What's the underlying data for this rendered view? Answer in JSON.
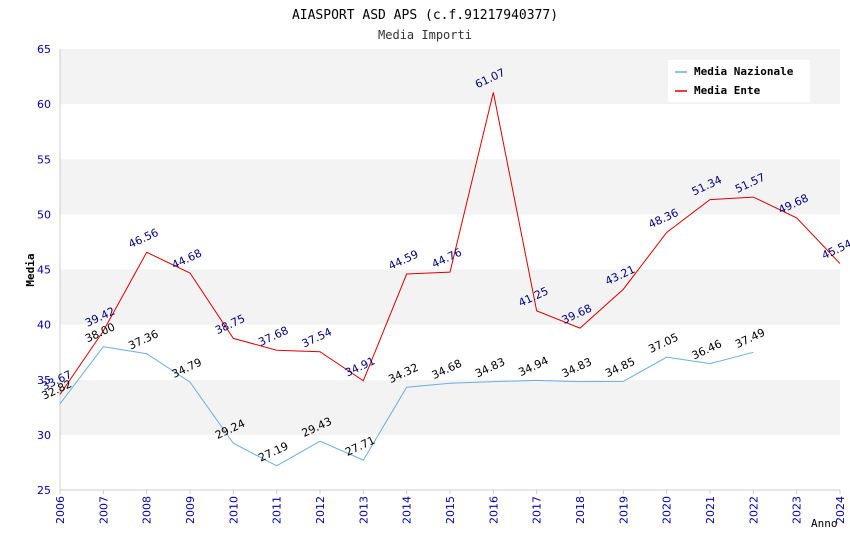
{
  "chart_data": {
    "type": "line",
    "title": "AIASPORT ASD APS (c.f.91217940377)",
    "subtitle": "Media Importi",
    "xlabel": "Anno",
    "ylabel": "Media",
    "ylim": [
      25,
      65
    ],
    "yticks": [
      "25",
      "30",
      "35",
      "40",
      "45",
      "50",
      "55",
      "60",
      "65"
    ],
    "x": [
      "2006",
      "2007",
      "2008",
      "2009",
      "2010",
      "2011",
      "2012",
      "2013",
      "2014",
      "2015",
      "2016",
      "2017",
      "2018",
      "2019",
      "2020",
      "2021",
      "2022",
      "2023",
      "2024"
    ],
    "grid": "horizontal alternating bands",
    "legend_position": "top-right",
    "series": [
      {
        "name": "Media Nazionale",
        "color": "#6aaee4",
        "label_color": "#000000",
        "values": [
          32.82,
          38.0,
          37.36,
          34.79,
          29.24,
          27.19,
          29.43,
          27.71,
          34.32,
          34.68,
          34.83,
          34.94,
          34.83,
          34.85,
          37.05,
          36.46,
          37.49,
          null,
          null
        ],
        "labels": [
          "32.82",
          "38.00",
          "37.36",
          "34.79",
          "29.24",
          "27.19",
          "29.43",
          "27.71",
          "34.32",
          "34.68",
          "34.83",
          "34.94",
          "34.83",
          "34.85",
          "37.05",
          "36.46",
          "37.49",
          null,
          null
        ]
      },
      {
        "name": "Media Ente",
        "color": "#e00000",
        "label_color": "#000080",
        "values": [
          33.67,
          39.42,
          46.56,
          44.68,
          38.75,
          37.68,
          37.54,
          34.91,
          44.59,
          44.76,
          61.07,
          41.25,
          39.68,
          43.21,
          48.36,
          51.34,
          51.57,
          49.68,
          45.54
        ],
        "labels": [
          "33.67",
          "39.42",
          "46.56",
          "44.68",
          "38.75",
          "37.68",
          "37.54",
          "34.91",
          "44.59",
          "44.76",
          "61.07",
          "41.25",
          "39.68",
          "43.21",
          "48.36",
          "51.34",
          "51.57",
          "49.68",
          "45.54"
        ]
      }
    ]
  }
}
